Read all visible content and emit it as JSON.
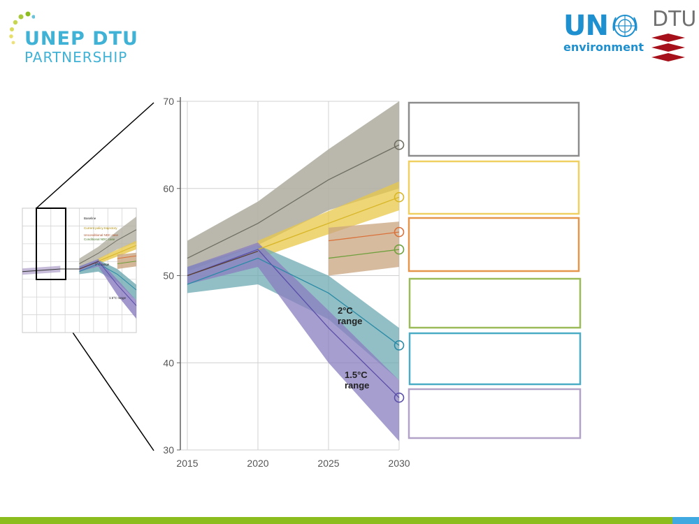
{
  "header": {
    "logo_title": "UNEP DTU",
    "logo_subtitle": "PARTNERSHIP",
    "un_logo_top": "UN",
    "un_logo_bottom": "environment",
    "dtu_logo_text": "DTU"
  },
  "colors": {
    "baseline": "#6e6e63",
    "baseline_band": "#b3b0a3",
    "current_policy": "#d8b628",
    "current_policy_band": "#e8c84a",
    "unconditional_ndc": "#d9713a",
    "conditional_ndc": "#6fa03d",
    "ndc_band": "#c9a47f",
    "two_c": "#2a8aa5",
    "two_c_band": "#6ea9b2",
    "one_five_c": "#5a4fa8",
    "one_five_c_band": "#8a7dc0",
    "bottom_bar_green": "#8cbd1f",
    "bottom_bar_blue": "#3fa9e0"
  },
  "legend_boxes": [
    {
      "name": "baseline-legend-box",
      "color": "#8c8c8c"
    },
    {
      "name": "current-policy-legend-box",
      "color": "#f0d060"
    },
    {
      "name": "unconditional-ndc-legend-box",
      "color": "#e6964a"
    },
    {
      "name": "conditional-ndc-legend-box",
      "color": "#9bbb59"
    },
    {
      "name": "two-c-legend-box",
      "color": "#4bacc6"
    },
    {
      "name": "one-five-c-legend-box",
      "color": "#b3a2c7"
    }
  ],
  "chart_data": [
    {
      "type": "line",
      "x": [
        2015,
        2020,
        2025,
        2030
      ],
      "xlim": [
        2015,
        2030
      ],
      "ylim": [
        30,
        70
      ],
      "x_ticks": [
        "2015",
        "2020",
        "2025",
        "2030"
      ],
      "y_ticks": [
        "30",
        "40",
        "50",
        "60",
        "70"
      ],
      "grid": true,
      "series": [
        {
          "key": "baseline",
          "x": [
            2015,
            2020,
            2025,
            2030
          ],
          "values": [
            52,
            56,
            61,
            65
          ],
          "band_low": [
            50.5,
            53.5,
            57.5,
            60
          ],
          "band_high": [
            54,
            58.5,
            64.5,
            70
          ]
        },
        {
          "key": "current_policy",
          "x": [
            2020,
            2030
          ],
          "values": [
            53,
            59
          ],
          "band_low": [
            52,
            57.5
          ],
          "band_high": [
            54,
            60.8
          ]
        },
        {
          "key": "unconditional_ndc",
          "x": [
            2025,
            2030
          ],
          "values": [
            54,
            55
          ],
          "band_low": [
            50,
            51
          ],
          "band_high": [
            55.5,
            56.2
          ]
        },
        {
          "key": "conditional_ndc",
          "x": [
            2025,
            2030
          ],
          "values": [
            52,
            53
          ],
          "band_low": [
            49,
            50
          ],
          "band_high": [
            54.5,
            55.5
          ]
        },
        {
          "key": "two_c",
          "x": [
            2015,
            2020,
            2025,
            2030
          ],
          "values": [
            49,
            52,
            48,
            42
          ],
          "band_low": [
            48,
            49,
            45,
            38
          ],
          "band_high": [
            51,
            53.5,
            50,
            44
          ],
          "label": "2°C range"
        },
        {
          "key": "one_five_c",
          "x": [
            2015,
            2020,
            2025,
            2030
          ],
          "values": [
            50,
            53,
            44,
            36
          ],
          "band_low": [
            49,
            51,
            40,
            31
          ],
          "band_high": [
            51,
            53.8,
            46,
            38
          ],
          "label": "1.5°C range"
        },
        {
          "key": "historical",
          "x": [
            2015,
            2020
          ],
          "values": [
            50,
            52.8
          ]
        }
      ],
      "end_markers": [
        65,
        59,
        55,
        53,
        42,
        36
      ]
    },
    {
      "type": "line",
      "x_start": 2000,
      "x_end": 2030,
      "series_labels": [
        "Baseline",
        "Current policy trajectory",
        "Unconditional NDC case",
        "Conditional NDC case",
        "2°C range",
        "1.5°C range"
      ]
    }
  ]
}
